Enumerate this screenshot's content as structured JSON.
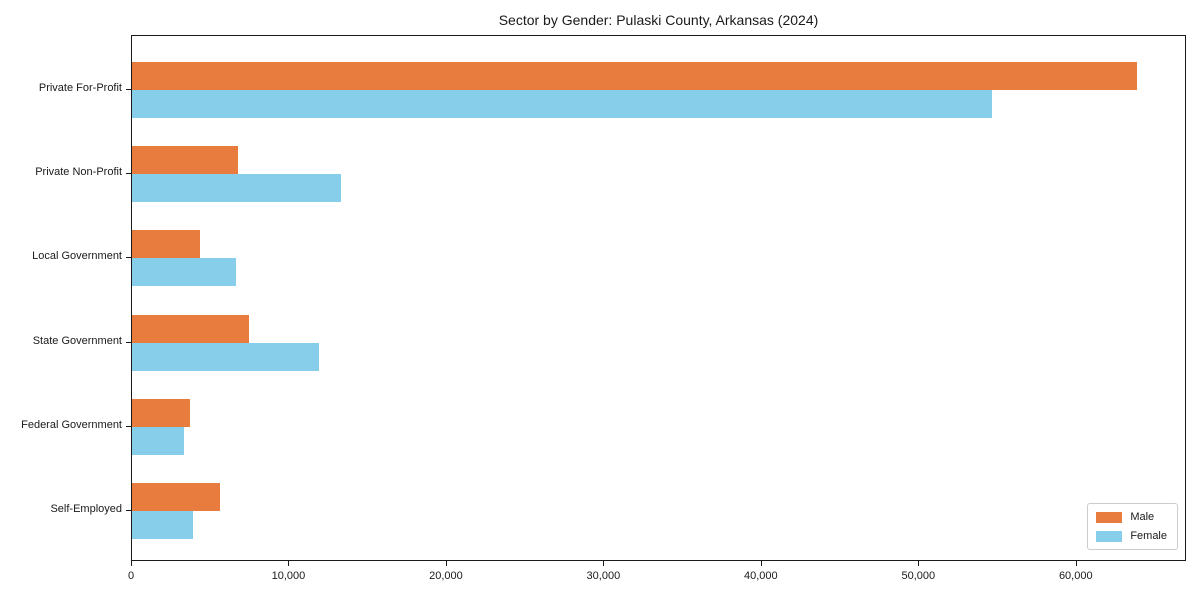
{
  "chart_data": {
    "type": "bar",
    "orientation": "horizontal",
    "title": "Sector by Gender: Pulaski County, Arkansas (2024)",
    "xlabel": "",
    "ylabel": "",
    "categories": [
      "Private For-Profit",
      "Private Non-Profit",
      "Local Government",
      "State Government",
      "Federal Government",
      "Self-Employed"
    ],
    "series": [
      {
        "name": "Male",
        "color": "#e87c3e",
        "values": [
          63800,
          6700,
          4300,
          7400,
          3700,
          5600
        ]
      },
      {
        "name": "Female",
        "color": "#87ceeb",
        "values": [
          54600,
          13300,
          6600,
          11900,
          3300,
          3900
        ]
      }
    ],
    "xlim": [
      0,
      67000
    ],
    "xticks": [
      0,
      10000,
      20000,
      30000,
      40000,
      50000,
      60000
    ],
    "xtick_labels": [
      "0",
      "10,000",
      "20,000",
      "30,000",
      "40,000",
      "50,000",
      "60,000"
    ],
    "grid": false,
    "legend_position": "lower right"
  }
}
